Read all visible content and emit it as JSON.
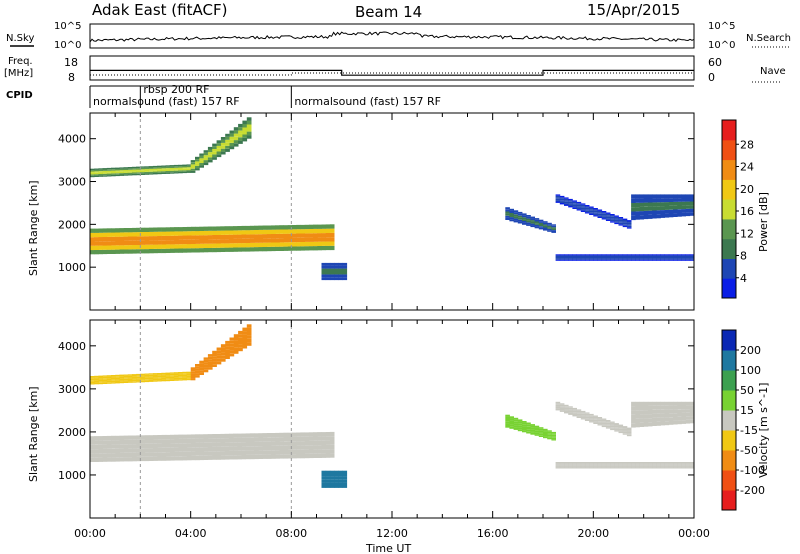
{
  "header": {
    "title": "Adak East (fitACF)",
    "beam": "Beam 14",
    "date": "15/Apr/2015"
  },
  "strips": {
    "nsky_label": "N.Sky",
    "nsearch_label": "N.Search",
    "noise_ticks": [
      "10^5",
      "10^0"
    ],
    "freq_label_line1": "Freq.",
    "freq_label_line2": "[MHz]",
    "freq_ticks": [
      "18",
      "8"
    ],
    "nave_label": "Nave",
    "nave_ticks": [
      "60",
      "0"
    ],
    "cpid_label": "CPID",
    "cpid_segments": [
      {
        "label": "normalsound (fast) 157 RF",
        "start_hour": 0,
        "end_hour": 2
      },
      {
        "label": "rbsp 200 RF",
        "start_hour": 2,
        "end_hour": 8
      },
      {
        "label": "normalsound (fast) 157 RF",
        "start_hour": 8,
        "end_hour": 24
      }
    ]
  },
  "panels": {
    "ylabel": "Slant Range [km]",
    "yticks": [
      "1000",
      "2000",
      "3000",
      "4000"
    ],
    "xlabel": "Time UT",
    "xticks": [
      "00:00",
      "04:00",
      "08:00",
      "12:00",
      "16:00",
      "20:00",
      "00:00"
    ]
  },
  "power_colorbar": {
    "label": "Power [dB]",
    "ticks": [
      "4",
      "8",
      "12",
      "16",
      "20",
      "24",
      "28"
    ],
    "colors": [
      "#0a1ee6",
      "#1e46b4",
      "#3c7850",
      "#5a9650",
      "#c8dc32",
      "#f0c814",
      "#f08c14",
      "#f05014",
      "#e61e1e"
    ]
  },
  "velocity_colorbar": {
    "label": "Velocity [m s^-1]",
    "ticks": [
      "200",
      "100",
      "50",
      "15",
      "-15",
      "-50",
      "-100",
      "-200"
    ],
    "colors": [
      "#0a28b4",
      "#1e78a0",
      "#3ca050",
      "#78d232",
      "#c8c8c0",
      "#f0c814",
      "#f08c14",
      "#f05014",
      "#e61e1e"
    ]
  },
  "chart_data": {
    "type": "heatmap",
    "x_unit": "hour UT",
    "x_range": [
      0,
      24
    ],
    "y_range": [
      0,
      4600
    ],
    "frequency_MHz": [
      {
        "start_hour": 0,
        "end_hour": 10,
        "value": 12
      },
      {
        "start_hour": 10,
        "end_hour": 18,
        "value": 10
      },
      {
        "start_hour": 18,
        "end_hour": 24,
        "value": 12
      }
    ],
    "echo_regions": [
      {
        "name": "ground-scatter band",
        "start_hour": 0.0,
        "end_hour": 9.7,
        "range_start_km": [
          1300,
          1400,
          1500,
          1700,
          2000
        ],
        "range_end_km": [
          1900,
          2000,
          2100,
          2300,
          2500
        ],
        "power_dB": 26,
        "velocity": -10
      },
      {
        "name": "upper band",
        "start_hour": 0.0,
        "end_hour": 4.0,
        "range_start_km": [
          3100,
          3200
        ],
        "range_end_km": [
          3300,
          3400
        ],
        "power_dB": 18,
        "velocity": -20
      },
      {
        "name": "rising arc",
        "start_hour": 4.0,
        "end_hour": 6.4,
        "range_start_km": [
          3200,
          4000
        ],
        "range_end_km": [
          3500,
          4500
        ],
        "power_dB": 18,
        "velocity": -60
      },
      {
        "name": "near-range patch",
        "start_hour": 9.2,
        "end_hour": 10.2,
        "range_start_km": [
          700,
          700
        ],
        "range_end_km": [
          1100,
          1100
        ],
        "power_dB": 10,
        "velocity": 150
      },
      {
        "name": "late arc 1",
        "start_hour": 16.5,
        "end_hour": 18.5,
        "range_start_km": [
          2100,
          1800
        ],
        "range_end_km": [
          2400,
          2000
        ],
        "power_dB": 8,
        "velocity": 20
      },
      {
        "name": "late arc 2",
        "start_hour": 18.5,
        "end_hour": 21.5,
        "range_start_km": [
          2500,
          1900
        ],
        "range_end_km": [
          2700,
          2100
        ],
        "power_dB": 6,
        "velocity": 0
      },
      {
        "name": "late band",
        "start_hour": 18.5,
        "end_hour": 24.0,
        "range_start_km": [
          1150,
          1150
        ],
        "range_end_km": [
          1300,
          1300
        ],
        "power_dB": 7,
        "velocity": 0
      },
      {
        "name": "end patch",
        "start_hour": 21.5,
        "end_hour": 24.0,
        "range_start_km": [
          2100,
          2200
        ],
        "range_end_km": [
          2700,
          2700
        ],
        "power_dB": 8,
        "velocity": 0
      }
    ]
  }
}
